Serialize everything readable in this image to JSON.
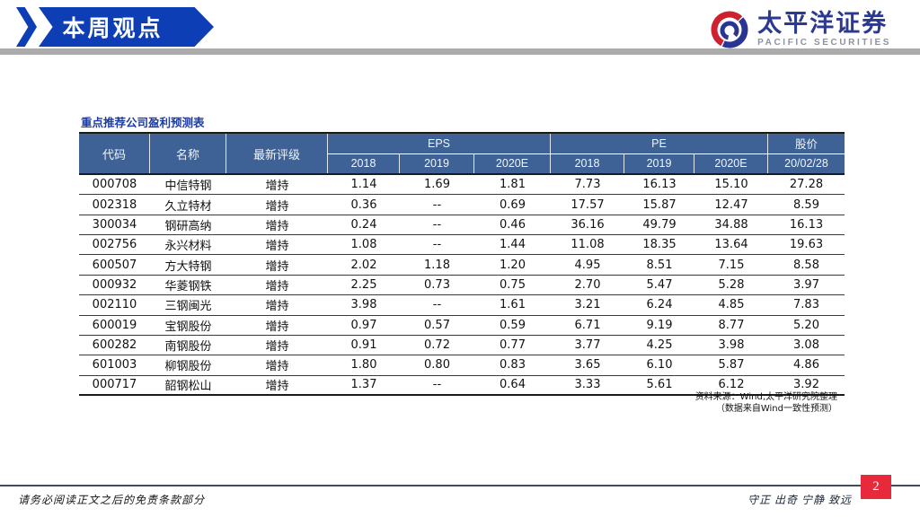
{
  "banner": {
    "title": "本周观点"
  },
  "logo": {
    "name_cn": "太平洋证券",
    "name_en": "PACIFIC SECURITIES"
  },
  "table": {
    "title": "重点推荐公司盈利预测表",
    "col_headers": {
      "code": "代码",
      "name": "名称",
      "rating": "最新评级",
      "eps": "EPS",
      "pe": "PE",
      "price": "股价",
      "eps_years": [
        "2018",
        "2019",
        "2020E"
      ],
      "pe_years": [
        "2018",
        "2019",
        "2020E"
      ],
      "price_date": "20/02/28"
    },
    "rows": [
      {
        "code": "000708",
        "name": "中信特钢",
        "rating": "增持",
        "eps": [
          "1.14",
          "1.69",
          "1.81"
        ],
        "pe": [
          "7.73",
          "16.13",
          "15.10"
        ],
        "price": "27.28"
      },
      {
        "code": "002318",
        "name": "久立特材",
        "rating": "增持",
        "eps": [
          "0.36",
          "--",
          "0.69"
        ],
        "pe": [
          "17.57",
          "15.87",
          "12.47"
        ],
        "price": "8.59"
      },
      {
        "code": "300034",
        "name": "钢研高纳",
        "rating": "增持",
        "eps": [
          "0.24",
          "--",
          "0.46"
        ],
        "pe": [
          "36.16",
          "49.79",
          "34.88"
        ],
        "price": "16.13"
      },
      {
        "code": "002756",
        "name": "永兴材料",
        "rating": "增持",
        "eps": [
          "1.08",
          "--",
          "1.44"
        ],
        "pe": [
          "11.08",
          "18.35",
          "13.64"
        ],
        "price": "19.63"
      },
      {
        "code": "600507",
        "name": "方大特钢",
        "rating": "增持",
        "eps": [
          "2.02",
          "1.18",
          "1.20"
        ],
        "pe": [
          "4.95",
          "8.51",
          "7.15"
        ],
        "price": "8.58"
      },
      {
        "code": "000932",
        "name": "华菱钢铁",
        "rating": "增持",
        "eps": [
          "2.25",
          "0.73",
          "0.75"
        ],
        "pe": [
          "2.70",
          "5.47",
          "5.28"
        ],
        "price": "3.97"
      },
      {
        "code": "002110",
        "name": "三钢闽光",
        "rating": "增持",
        "eps": [
          "3.98",
          "--",
          "1.61"
        ],
        "pe": [
          "3.21",
          "6.24",
          "4.85"
        ],
        "price": "7.83"
      },
      {
        "code": "600019",
        "name": "宝钢股份",
        "rating": "增持",
        "eps": [
          "0.97",
          "0.57",
          "0.59"
        ],
        "pe": [
          "6.71",
          "9.19",
          "8.77"
        ],
        "price": "5.20"
      },
      {
        "code": "600282",
        "name": "南钢股份",
        "rating": "增持",
        "eps": [
          "0.91",
          "0.72",
          "0.77"
        ],
        "pe": [
          "3.77",
          "4.25",
          "3.98"
        ],
        "price": "3.08"
      },
      {
        "code": "601003",
        "name": "柳钢股份",
        "rating": "增持",
        "eps": [
          "1.80",
          "0.80",
          "0.83"
        ],
        "pe": [
          "3.65",
          "6.10",
          "5.87"
        ],
        "price": "4.86"
      },
      {
        "code": "000717",
        "name": "韶钢松山",
        "rating": "增持",
        "eps": [
          "1.37",
          "--",
          "0.64"
        ],
        "pe": [
          "3.33",
          "5.61",
          "6.12"
        ],
        "price": "3.92"
      }
    ]
  },
  "source_note": {
    "line1": "资料来源：Wind,太平洋研究院整理",
    "line2": "（数据来自Wind一致性预测）"
  },
  "footer": {
    "disclaimer": "请务必阅读正文之后的免责条款部分",
    "motto": "守正 出奇 宁静 致远",
    "page": "2"
  },
  "colors": {
    "banner_blue": "#0d3eb5",
    "table_header_blue": "#3e6295",
    "table_title_blue": "#1c3da5",
    "logo_blue": "#2b3990",
    "logo_red": "#cf2030",
    "logo_en_gray": "#8b93a3",
    "divider_gray": "#ababab",
    "footer_line": "#3e4c63",
    "page_badge_red": "#e8293b"
  }
}
